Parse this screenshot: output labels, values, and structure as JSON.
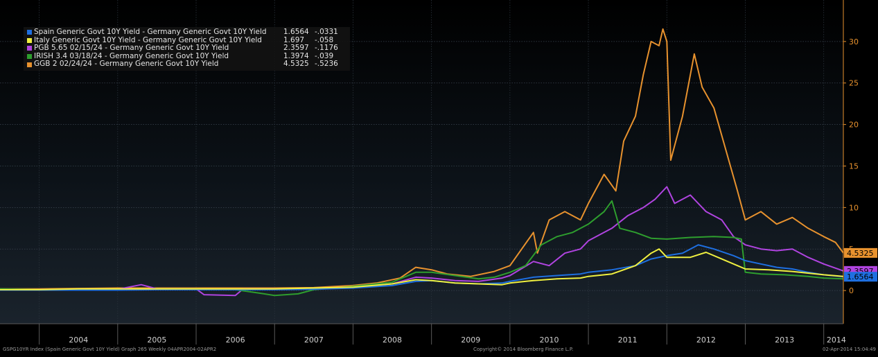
{
  "chart_data": {
    "type": "line",
    "title": "",
    "xlabel": "",
    "ylabel": "",
    "x_ticks": [
      "2004",
      "2005",
      "2006",
      "2007",
      "2008",
      "2009",
      "2010",
      "2011",
      "2012",
      "2013",
      "2014"
    ],
    "y_ticks": [
      0,
      5,
      10,
      15,
      20,
      25,
      30
    ],
    "ylim": [
      -4,
      35
    ],
    "xlim": [
      2003.5,
      2014.25
    ],
    "grid": true,
    "legend_position": "top-left",
    "series": [
      {
        "name": "GGB 2 02/24/24 - Germany Generic Govt 10Y Yield",
        "color": "#e8922e",
        "last": "4.5325",
        "change": "-.5236",
        "badge": "4.5325",
        "points": [
          [
            2003.5,
            0.2
          ],
          [
            2004,
            0.2
          ],
          [
            2004.5,
            0.25
          ],
          [
            2005,
            0.3
          ],
          [
            2005.5,
            0.3
          ],
          [
            2006,
            0.3
          ],
          [
            2006.5,
            0.3
          ],
          [
            2007,
            0.3
          ],
          [
            2007.5,
            0.35
          ],
          [
            2008,
            0.6
          ],
          [
            2008.3,
            0.9
          ],
          [
            2008.6,
            1.5
          ],
          [
            2008.8,
            2.8
          ],
          [
            2009,
            2.5
          ],
          [
            2009.2,
            2.0
          ],
          [
            2009.5,
            1.7
          ],
          [
            2009.8,
            2.3
          ],
          [
            2010,
            3.0
          ],
          [
            2010.3,
            7.0
          ],
          [
            2010.35,
            4.5
          ],
          [
            2010.5,
            8.5
          ],
          [
            2010.7,
            9.5
          ],
          [
            2010.9,
            8.5
          ],
          [
            2011,
            10.5
          ],
          [
            2011.2,
            14
          ],
          [
            2011.35,
            12
          ],
          [
            2011.45,
            18
          ],
          [
            2011.6,
            21
          ],
          [
            2011.7,
            26
          ],
          [
            2011.8,
            30
          ],
          [
            2011.9,
            29.5
          ],
          [
            2011.95,
            31.5
          ],
          [
            2012.0,
            30
          ],
          [
            2012.05,
            15.7
          ],
          [
            2012.2,
            21
          ],
          [
            2012.35,
            28.5
          ],
          [
            2012.45,
            24.5
          ],
          [
            2012.6,
            22
          ],
          [
            2012.75,
            17
          ],
          [
            2012.9,
            12
          ],
          [
            2013.0,
            8.5
          ],
          [
            2013.2,
            9.5
          ],
          [
            2013.4,
            8.0
          ],
          [
            2013.6,
            8.8
          ],
          [
            2013.8,
            7.5
          ],
          [
            2014.0,
            6.5
          ],
          [
            2014.15,
            5.8
          ],
          [
            2014.25,
            4.53
          ]
        ]
      },
      {
        "name": "PGB 5.65 02/15/24 - Germany Generic Govt 10Y Yield",
        "color": "#b044e0",
        "last": "2.3597",
        "change": "-.1176",
        "badge": "2.3597",
        "points": [
          [
            2003.5,
            0.1
          ],
          [
            2004,
            0.1
          ],
          [
            2004.5,
            0.1
          ],
          [
            2005,
            0.15
          ],
          [
            2005.3,
            0.7
          ],
          [
            2005.5,
            0.2
          ],
          [
            2006,
            0.2
          ],
          [
            2006.1,
            -0.5
          ],
          [
            2006.5,
            -0.6
          ],
          [
            2006.6,
            0.2
          ],
          [
            2007,
            0.2
          ],
          [
            2007.5,
            0.2
          ],
          [
            2008,
            0.4
          ],
          [
            2008.5,
            0.8
          ],
          [
            2008.8,
            1.6
          ],
          [
            2009,
            1.5
          ],
          [
            2009.3,
            1.2
          ],
          [
            2009.6,
            1.1
          ],
          [
            2009.9,
            1.5
          ],
          [
            2010,
            1.8
          ],
          [
            2010.3,
            3.5
          ],
          [
            2010.5,
            3.0
          ],
          [
            2010.7,
            4.5
          ],
          [
            2010.9,
            5.0
          ],
          [
            2011,
            6.0
          ],
          [
            2011.3,
            7.5
          ],
          [
            2011.5,
            9.0
          ],
          [
            2011.7,
            10.0
          ],
          [
            2011.85,
            11.0
          ],
          [
            2012.0,
            12.5
          ],
          [
            2012.1,
            10.5
          ],
          [
            2012.3,
            11.5
          ],
          [
            2012.5,
            9.5
          ],
          [
            2012.7,
            8.5
          ],
          [
            2012.85,
            6.5
          ],
          [
            2013.0,
            5.5
          ],
          [
            2013.2,
            5.0
          ],
          [
            2013.4,
            4.8
          ],
          [
            2013.6,
            5.0
          ],
          [
            2013.8,
            4.0
          ],
          [
            2014.0,
            3.2
          ],
          [
            2014.25,
            2.36
          ]
        ]
      },
      {
        "name": "IRISH 3.4 03/18/24 - Germany Generic Govt 10Y Yield",
        "color": "#2e9e2e",
        "last": "1.3974",
        "change": "-.039",
        "badge": "",
        "points": [
          [
            2003.5,
            0.2
          ],
          [
            2004,
            0.1
          ],
          [
            2004.5,
            0.1
          ],
          [
            2005,
            0.1
          ],
          [
            2005.5,
            0.2
          ],
          [
            2006,
            0.2
          ],
          [
            2006.5,
            0.1
          ],
          [
            2006.8,
            -0.3
          ],
          [
            2007,
            -0.6
          ],
          [
            2007.3,
            -0.4
          ],
          [
            2007.5,
            0.1
          ],
          [
            2008,
            0.5
          ],
          [
            2008.5,
            1.0
          ],
          [
            2008.8,
            2.2
          ],
          [
            2009,
            2.2
          ],
          [
            2009.3,
            1.8
          ],
          [
            2009.6,
            1.4
          ],
          [
            2009.8,
            1.6
          ],
          [
            2010,
            2.2
          ],
          [
            2010.2,
            3.0
          ],
          [
            2010.4,
            5.5
          ],
          [
            2010.6,
            6.5
          ],
          [
            2010.8,
            7.0
          ],
          [
            2011.0,
            8.0
          ],
          [
            2011.2,
            9.5
          ],
          [
            2011.3,
            10.8
          ],
          [
            2011.4,
            7.5
          ],
          [
            2011.6,
            7.0
          ],
          [
            2011.8,
            6.3
          ],
          [
            2012.0,
            6.2
          ],
          [
            2012.3,
            6.4
          ],
          [
            2012.6,
            6.5
          ],
          [
            2012.85,
            6.4
          ],
          [
            2012.95,
            6.2
          ],
          [
            2013.0,
            2.2
          ],
          [
            2013.2,
            2.0
          ],
          [
            2013.5,
            1.9
          ],
          [
            2013.8,
            1.7
          ],
          [
            2014.0,
            1.5
          ],
          [
            2014.25,
            1.4
          ]
        ]
      },
      {
        "name": "Spain Generic Govt 10Y Yield - Germany Generic Govt 10Y Yield",
        "color": "#1e6fe0",
        "last": "1.6564",
        "change": "-.0331",
        "badge": "1.6564",
        "points": [
          [
            2003.5,
            0.05
          ],
          [
            2004,
            0.05
          ],
          [
            2004.5,
            0.05
          ],
          [
            2005,
            0.05
          ],
          [
            2005.5,
            0.1
          ],
          [
            2006,
            0.1
          ],
          [
            2006.5,
            0.1
          ],
          [
            2007,
            0.1
          ],
          [
            2007.5,
            0.15
          ],
          [
            2008,
            0.3
          ],
          [
            2008.5,
            0.6
          ],
          [
            2008.8,
            1.1
          ],
          [
            2009,
            1.2
          ],
          [
            2009.3,
            0.9
          ],
          [
            2009.6,
            0.8
          ],
          [
            2009.9,
            0.9
          ],
          [
            2010,
            1.1
          ],
          [
            2010.3,
            1.6
          ],
          [
            2010.6,
            1.8
          ],
          [
            2010.9,
            2.0
          ],
          [
            2011,
            2.2
          ],
          [
            2011.3,
            2.5
          ],
          [
            2011.6,
            3.0
          ],
          [
            2011.8,
            3.8
          ],
          [
            2012.0,
            4.2
          ],
          [
            2012.2,
            4.5
          ],
          [
            2012.4,
            5.5
          ],
          [
            2012.6,
            5.0
          ],
          [
            2012.85,
            4.2
          ],
          [
            2013.0,
            3.6
          ],
          [
            2013.2,
            3.2
          ],
          [
            2013.4,
            2.8
          ],
          [
            2013.6,
            2.6
          ],
          [
            2013.8,
            2.2
          ],
          [
            2014.0,
            1.9
          ],
          [
            2014.25,
            1.66
          ]
        ]
      },
      {
        "name": "Italy Generic Govt 10Y Yield - Germany Generic Govt 10Y Yield",
        "color": "#f0f040",
        "last": "1.697",
        "change": "-.058",
        "badge": "",
        "points": [
          [
            2003.5,
            0.1
          ],
          [
            2004,
            0.1
          ],
          [
            2004.5,
            0.2
          ],
          [
            2005,
            0.2
          ],
          [
            2005.5,
            0.2
          ],
          [
            2006,
            0.2
          ],
          [
            2006.5,
            0.2
          ],
          [
            2007,
            0.2
          ],
          [
            2007.5,
            0.3
          ],
          [
            2008,
            0.4
          ],
          [
            2008.5,
            0.8
          ],
          [
            2008.8,
            1.3
          ],
          [
            2009,
            1.2
          ],
          [
            2009.3,
            0.9
          ],
          [
            2009.6,
            0.8
          ],
          [
            2009.9,
            0.7
          ],
          [
            2010,
            0.9
          ],
          [
            2010.3,
            1.2
          ],
          [
            2010.6,
            1.4
          ],
          [
            2010.9,
            1.5
          ],
          [
            2011,
            1.7
          ],
          [
            2011.3,
            2.0
          ],
          [
            2011.6,
            3.0
          ],
          [
            2011.8,
            4.5
          ],
          [
            2011.9,
            5.0
          ],
          [
            2012.0,
            4.0
          ],
          [
            2012.3,
            4.0
          ],
          [
            2012.5,
            4.6
          ],
          [
            2012.7,
            3.8
          ],
          [
            2012.9,
            3.0
          ],
          [
            2013.0,
            2.6
          ],
          [
            2013.3,
            2.5
          ],
          [
            2013.6,
            2.3
          ],
          [
            2013.8,
            2.1
          ],
          [
            2014.0,
            1.9
          ],
          [
            2014.25,
            1.7
          ]
        ]
      }
    ]
  },
  "footer": {
    "left": "GSPG10YR Index (Spain Generic Govt 10Y Yield) Graph 265  Weekly 04APR2004-02APR2",
    "center": "Copyright© 2014 Bloomberg Finance L.P.",
    "right": "02-Apr-2014 15:04:49"
  }
}
